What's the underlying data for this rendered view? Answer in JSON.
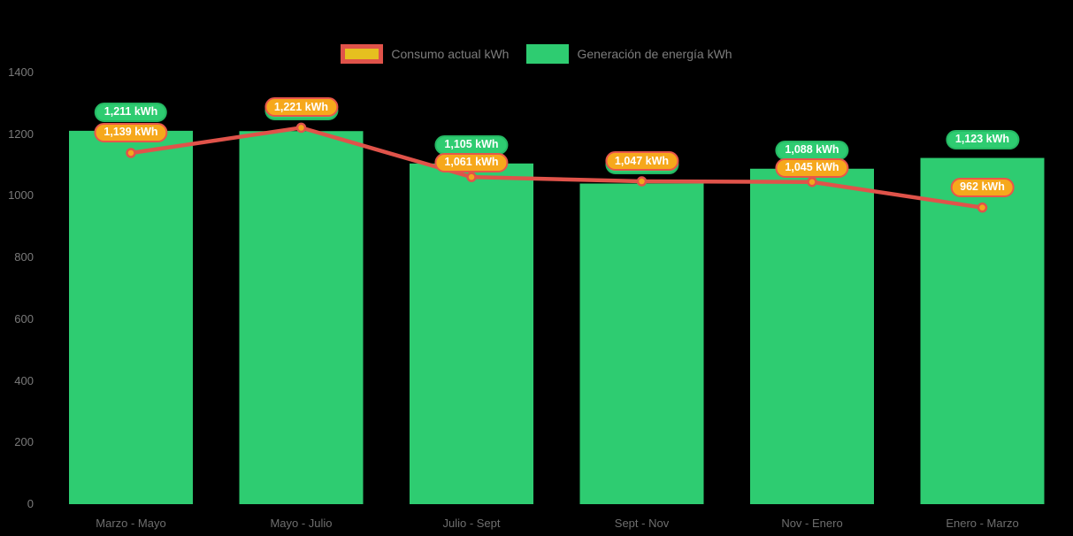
{
  "chart_data": {
    "type": "combo",
    "title": "",
    "background": "#000000",
    "categories": [
      "Marzo - Mayo",
      "Mayo - Julio",
      "Julio - Sept",
      "Sept - Nov",
      "Nov - Enero",
      "Enero - Marzo"
    ],
    "bar_series": {
      "name": "Generación de energía kWh",
      "values": [
        1211,
        1210,
        1105,
        1040,
        1088,
        1123
      ],
      "labels": [
        "1,211 kWh",
        "",
        "1,105 kWh",
        "",
        "1,088 kWh",
        "1,123 kWh"
      ],
      "label_visible": [
        true,
        false,
        true,
        false,
        true,
        true
      ],
      "color": "#2ecc71",
      "label_fill": "#2ecc71",
      "label_border": "#25b863"
    },
    "line_series": {
      "name": "Consumo actual kWh",
      "values": [
        1139,
        1221,
        1061,
        1047,
        1045,
        962
      ],
      "labels": [
        "1,139 kWh",
        "1,221 kWh",
        "1,061 kWh",
        "1,047 kWh",
        "1,045 kWh",
        "962 kWh"
      ],
      "color": "#e0534a",
      "marker_fill": "#f2a71d",
      "label_fill": "#f6a81c",
      "label_border": "#e8564a"
    },
    "ylim": [
      0,
      1400
    ],
    "yticks": [
      0,
      200,
      400,
      600,
      800,
      1000,
      1200,
      1400
    ],
    "grid": false,
    "legend_position": "top-center",
    "legend_swatch_line": {
      "border": "#e0534a",
      "fill": "#e6c01f"
    },
    "axis_text_color": "#7a7a7a"
  }
}
